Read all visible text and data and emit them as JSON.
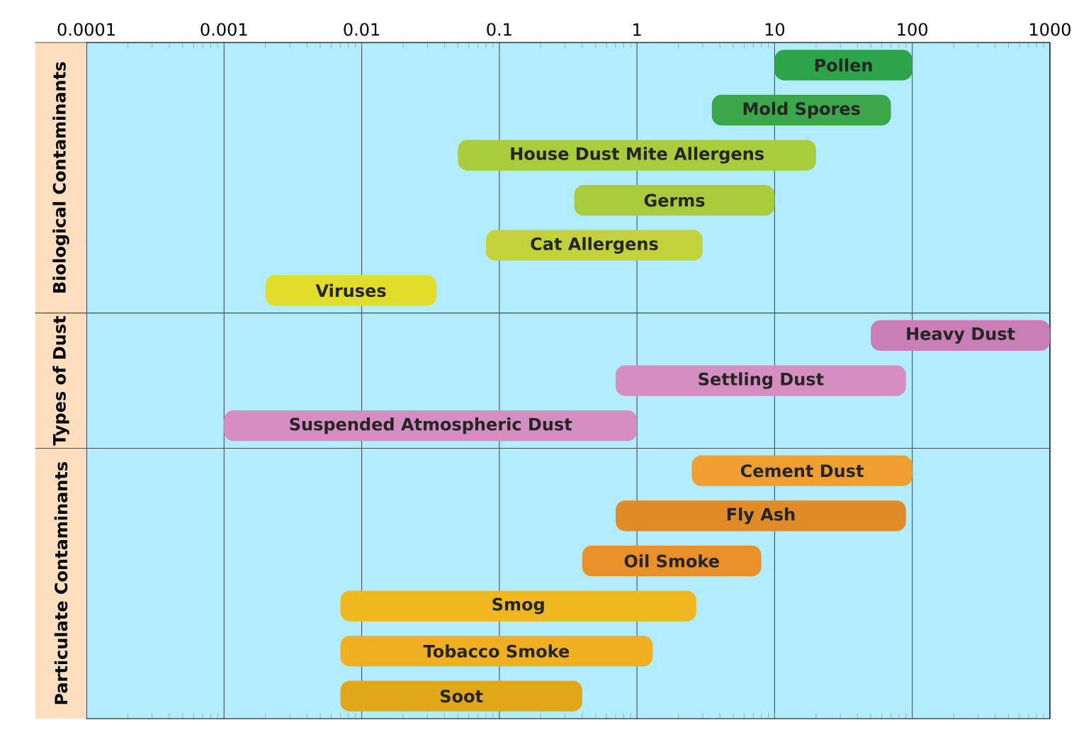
{
  "chart_data": {
    "type": "bar",
    "orientation": "horizontal",
    "log": "x",
    "grid": "x",
    "categories": [
      "Pollen",
      "Mold Spores",
      "House Dust Mite Allergens",
      "Germs",
      "Cat Allergens",
      "Viruses",
      "Heavy Dust",
      "Settling Dust",
      "Suspended Atmospheric Dust",
      "Cement Dust",
      "Fly Ash",
      "Oil Smoke",
      "Smog",
      "Tobacco Smoke",
      "Soot"
    ],
    "annotations": [
      "Biological Contaminants",
      "Types of Dust",
      "Particulate Contaminants"
    ],
    "xlim": [
      0.0001,
      1000
    ],
    "xticks": [
      0.0001,
      0.001,
      0.01,
      0.1,
      1,
      10,
      100,
      1000
    ],
    "series": [
      {
        "colors": [
          "#2ca54a",
          "#3aa84a",
          "#a8cc3c",
          "#a8cc3c",
          "#c2d23a",
          "#e2dc2a",
          null,
          null,
          null,
          null,
          null,
          null,
          null,
          null,
          null
        ],
        "base": [
          10,
          3.5,
          0.05,
          0.35,
          0.08,
          0.002,
          null,
          null,
          null,
          null,
          null,
          null,
          null,
          null,
          null
        ],
        "values": [
          90,
          66.5,
          19.95,
          9.65,
          2.92,
          0.033,
          null,
          null,
          null,
          null,
          null,
          null,
          null,
          null,
          null
        ]
      },
      {
        "colors": [
          null,
          null,
          null,
          null,
          null,
          null,
          "#c97fb5",
          "#d58ec0",
          "#d58ec0",
          null,
          null,
          null,
          null,
          null,
          null
        ],
        "base": [
          null,
          null,
          null,
          null,
          null,
          null,
          50,
          0.7,
          0.001,
          null,
          null,
          null,
          null,
          null,
          null
        ],
        "values": [
          null,
          null,
          null,
          null,
          null,
          null,
          950,
          89.3,
          0.999,
          null,
          null,
          null,
          null,
          null,
          null
        ]
      },
      {
        "colors": [
          null,
          null,
          null,
          null,
          null,
          null,
          null,
          null,
          null,
          "#f0a030",
          "#e08a28",
          "#e8902a",
          "#f0b820",
          "#f0b020",
          "#e0a818"
        ],
        "base": [
          null,
          null,
          null,
          null,
          null,
          null,
          null,
          null,
          null,
          2.5,
          0.7,
          0.4,
          0.007,
          0.007,
          0.007
        ],
        "values": [
          null,
          null,
          null,
          null,
          null,
          null,
          null,
          null,
          null,
          97.5,
          89.3,
          7.6,
          2.693,
          1.293,
          0.393
        ]
      }
    ]
  }
}
